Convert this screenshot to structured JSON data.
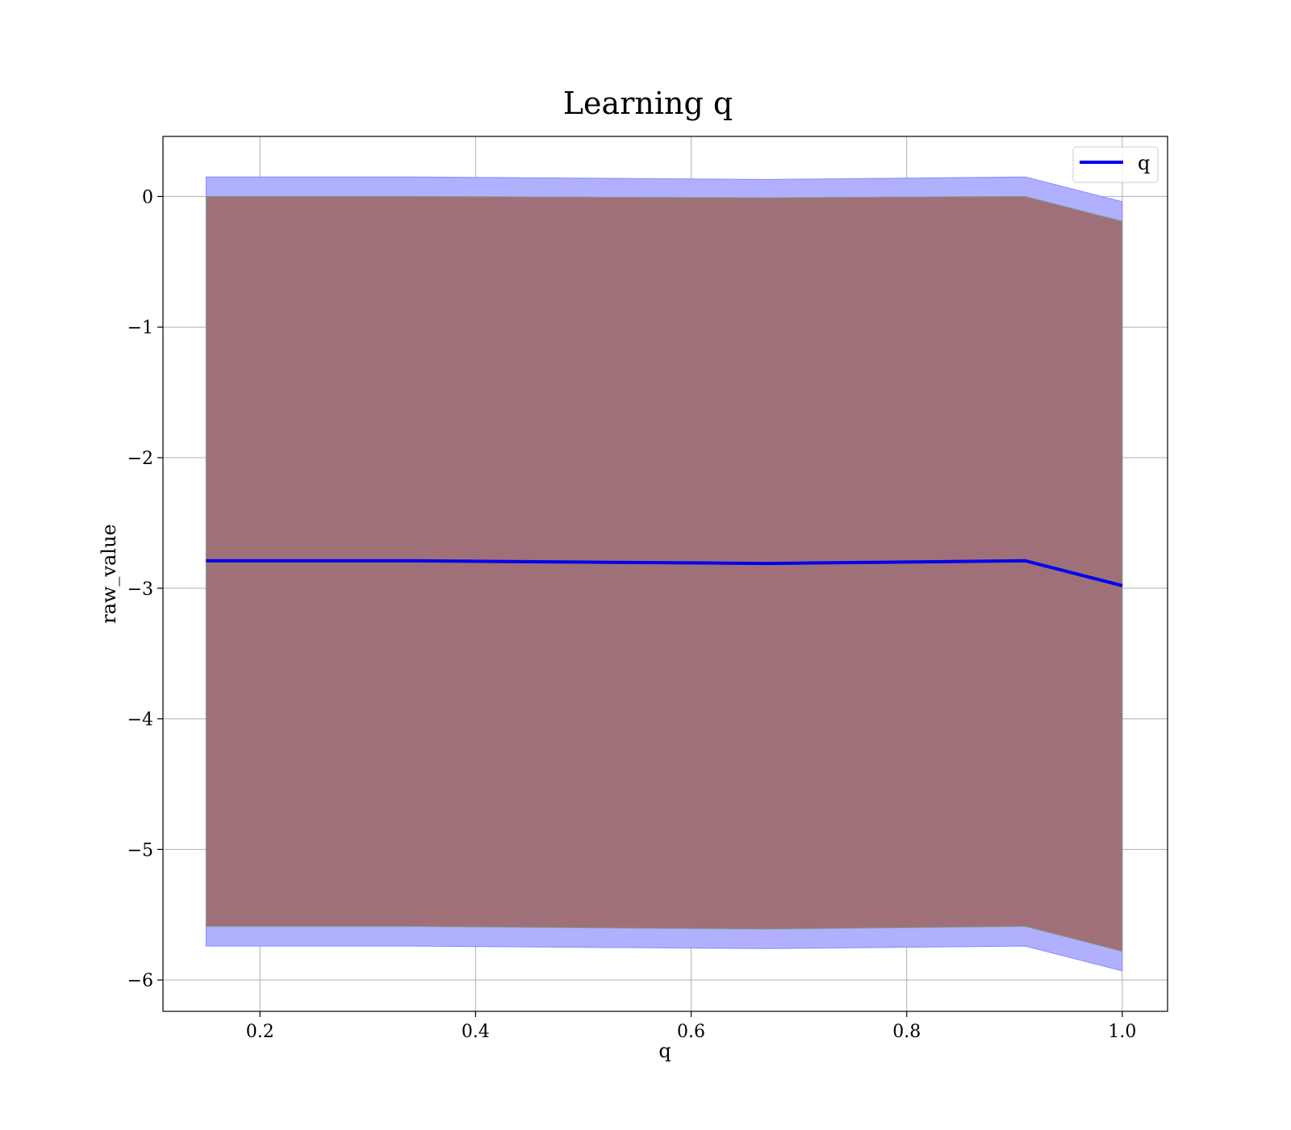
{
  "chart_data": {
    "type": "line",
    "title": "Learning q",
    "xlabel": "q",
    "ylabel": "raw_value",
    "xlim": [
      0.11,
      1.042
    ],
    "ylim": [
      -6.24,
      0.46
    ],
    "xticks": [
      0.2,
      0.4,
      0.6,
      0.8,
      1.0
    ],
    "xtick_labels": [
      "0.2",
      "0.4",
      "0.6",
      "0.8",
      "1.0"
    ],
    "yticks": [
      0,
      -1,
      -2,
      -3,
      -4,
      -5,
      -6
    ],
    "ytick_labels": [
      "0",
      "−1",
      "−2",
      "−3",
      "−4",
      "−5",
      "−6"
    ],
    "grid": true,
    "legend": {
      "placement": "upper right",
      "entries": [
        "q"
      ]
    },
    "colors": {
      "line": "#0000ee",
      "band_outer": "#b0b0ff",
      "band_inner": "#a07078",
      "grid": "#b0b0b0"
    },
    "series": [
      {
        "name": "q",
        "x": [
          0.15,
          0.34,
          0.67,
          0.91,
          1.0
        ],
        "y": [
          -2.79,
          -2.79,
          -2.81,
          -2.79,
          -2.98
        ],
        "band_outer_upper": [
          0.15,
          0.15,
          0.13,
          0.15,
          -0.04
        ],
        "band_outer_lower": [
          -5.74,
          -5.74,
          -5.76,
          -5.74,
          -5.93
        ],
        "band_inner_upper": [
          0.0,
          0.0,
          -0.01,
          0.0,
          -0.19
        ],
        "band_inner_lower": [
          -5.59,
          -5.59,
          -5.61,
          -5.59,
          -5.78
        ]
      }
    ]
  }
}
